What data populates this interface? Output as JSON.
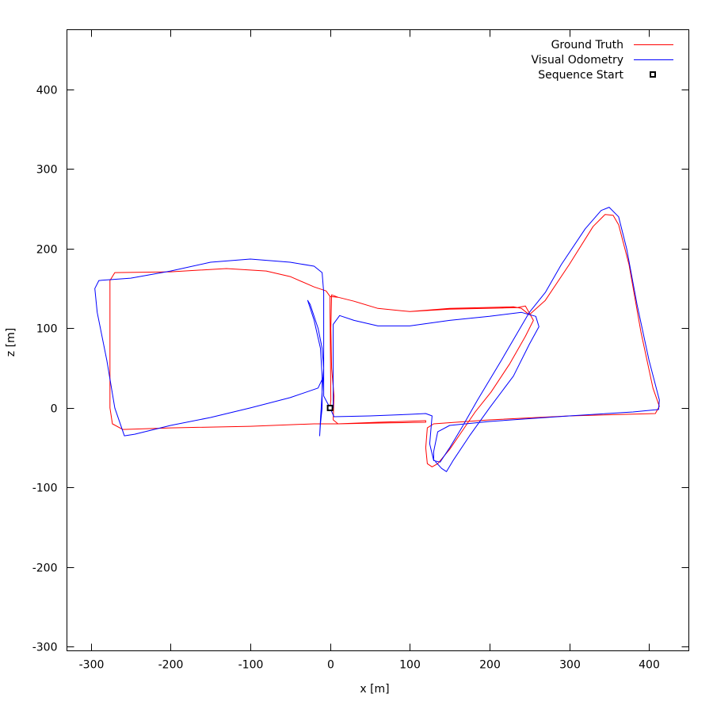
{
  "chart_data": {
    "type": "line",
    "xlabel": "x [m]",
    "ylabel": "z [m]",
    "xlim": [
      -330,
      450
    ],
    "ylim": [
      -305,
      475
    ],
    "xticks": [
      -300,
      -200,
      -100,
      0,
      100,
      200,
      300,
      400
    ],
    "yticks": [
      -300,
      -200,
      -100,
      0,
      100,
      200,
      300,
      400
    ],
    "grid": false,
    "legend_position": "top-right",
    "series": [
      {
        "name": "Ground Truth",
        "color": "#ff0000",
        "points": [
          [
            0,
            0
          ],
          [
            1,
            10
          ],
          [
            0,
            120
          ],
          [
            0,
            140
          ],
          [
            10,
            139
          ],
          [
            30,
            134
          ],
          [
            60,
            125
          ],
          [
            100,
            121
          ],
          [
            150,
            125
          ],
          [
            230,
            127
          ],
          [
            240,
            125
          ],
          [
            250,
            117
          ],
          [
            270,
            135
          ],
          [
            300,
            180
          ],
          [
            330,
            228
          ],
          [
            345,
            243
          ],
          [
            355,
            242
          ],
          [
            362,
            230
          ],
          [
            375,
            180
          ],
          [
            390,
            95
          ],
          [
            405,
            25
          ],
          [
            413,
            2
          ],
          [
            408,
            -7
          ],
          [
            300,
            -10
          ],
          [
            200,
            -15
          ],
          [
            130,
            -20
          ],
          [
            122,
            -25
          ],
          [
            120,
            -50
          ],
          [
            122,
            -70
          ],
          [
            128,
            -74
          ],
          [
            135,
            -70
          ],
          [
            150,
            -52
          ],
          [
            165,
            -30
          ],
          [
            182,
            -5
          ],
          [
            202,
            20
          ],
          [
            225,
            55
          ],
          [
            245,
            90
          ],
          [
            255,
            110
          ],
          [
            245,
            128
          ],
          [
            235,
            126
          ],
          [
            150,
            124
          ],
          [
            100,
            121
          ],
          [
            60,
            125
          ],
          [
            30,
            134
          ],
          [
            10,
            139
          ],
          [
            2,
            142
          ],
          [
            1,
            100
          ],
          [
            2,
            50
          ],
          [
            5,
            15
          ],
          [
            4,
            -15
          ],
          [
            10,
            -20
          ],
          [
            60,
            -18
          ],
          [
            120,
            -16
          ],
          [
            120,
            -18
          ],
          [
            60,
            -19
          ],
          [
            10,
            -20
          ],
          [
            -20,
            -20
          ],
          [
            -100,
            -23
          ],
          [
            -200,
            -25
          ],
          [
            -260,
            -27
          ],
          [
            -273,
            -20
          ],
          [
            -276,
            0
          ],
          [
            -276,
            100
          ],
          [
            -276,
            160
          ],
          [
            -270,
            170
          ],
          [
            -200,
            171
          ],
          [
            -130,
            175
          ],
          [
            -80,
            172
          ],
          [
            -50,
            165
          ],
          [
            -20,
            152
          ],
          [
            -5,
            147
          ],
          [
            0,
            140
          ]
        ]
      },
      {
        "name": "Visual Odometry",
        "color": "#0000ff",
        "points": [
          [
            0,
            0
          ],
          [
            4,
            0
          ],
          [
            4,
            60
          ],
          [
            4,
            105
          ],
          [
            12,
            116
          ],
          [
            30,
            110
          ],
          [
            60,
            103
          ],
          [
            100,
            103
          ],
          [
            150,
            110
          ],
          [
            200,
            115
          ],
          [
            240,
            120
          ],
          [
            258,
            115
          ],
          [
            262,
            102
          ],
          [
            250,
            80
          ],
          [
            230,
            40
          ],
          [
            200,
            0
          ],
          [
            175,
            -35
          ],
          [
            155,
            -65
          ],
          [
            146,
            -80
          ],
          [
            140,
            -76
          ],
          [
            130,
            -65
          ],
          [
            130,
            -55
          ],
          [
            135,
            -30
          ],
          [
            150,
            -22
          ],
          [
            200,
            -17
          ],
          [
            300,
            -10
          ],
          [
            380,
            -5
          ],
          [
            412,
            -2
          ],
          [
            413,
            10
          ],
          [
            400,
            60
          ],
          [
            385,
            130
          ],
          [
            372,
            200
          ],
          [
            362,
            240
          ],
          [
            350,
            252
          ],
          [
            340,
            248
          ],
          [
            320,
            225
          ],
          [
            290,
            180
          ],
          [
            270,
            145
          ],
          [
            250,
            120
          ],
          [
            215,
            60
          ],
          [
            185,
            10
          ],
          [
            165,
            -25
          ],
          [
            150,
            -50
          ],
          [
            138,
            -68
          ],
          [
            130,
            -66
          ],
          [
            125,
            -45
          ],
          [
            128,
            -10
          ],
          [
            120,
            -7
          ],
          [
            100,
            -8
          ],
          [
            50,
            -10
          ],
          [
            5,
            -11
          ],
          [
            0,
            0
          ],
          [
            -8,
            15
          ],
          [
            -8,
            50
          ],
          [
            -10,
            75
          ],
          [
            -15,
            100
          ],
          [
            -25,
            130
          ],
          [
            -28,
            135
          ],
          [
            -20,
            110
          ],
          [
            -12,
            75
          ],
          [
            -10,
            40
          ],
          [
            -10,
            0
          ],
          [
            -12,
            -20
          ],
          [
            -13,
            -35
          ],
          [
            -12,
            -15
          ],
          [
            -10,
            20
          ],
          [
            -8,
            50
          ],
          [
            -8,
            100
          ],
          [
            -8,
            145
          ],
          [
            -10,
            170
          ],
          [
            -20,
            178
          ],
          [
            -50,
            183
          ],
          [
            -100,
            187
          ],
          [
            -150,
            183
          ],
          [
            -200,
            172
          ],
          [
            -250,
            163
          ],
          [
            -290,
            160
          ],
          [
            -295,
            150
          ],
          [
            -292,
            120
          ],
          [
            -280,
            60
          ],
          [
            -270,
            0
          ],
          [
            -258,
            -35
          ],
          [
            -245,
            -33
          ],
          [
            -200,
            -22
          ],
          [
            -150,
            -12
          ],
          [
            -100,
            0
          ],
          [
            -50,
            13
          ],
          [
            -15,
            25
          ],
          [
            -8,
            40
          ],
          [
            -8,
            100
          ],
          [
            -8,
            145
          ]
        ]
      }
    ],
    "markers": [
      {
        "name": "Sequence Start",
        "x": 0,
        "y": 0,
        "symbol": "open-square",
        "color": "#000000"
      }
    ]
  }
}
